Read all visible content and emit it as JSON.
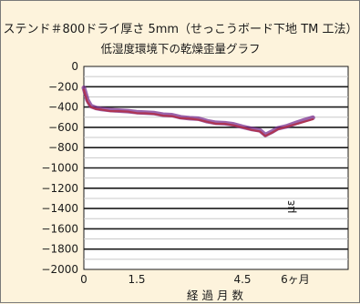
{
  "chart_data": {
    "type": "line",
    "title": "ステンド＃800ドライ厚さ 5mm（せっこうボード下地 TM 工法）",
    "subtitle": "低湿度環境下の乾燥歪量グラフ",
    "xlabel": "経 過 月 数",
    "ylabel": "με",
    "xlim": [
      0,
      7.5
    ],
    "ylim": [
      -2000,
      0
    ],
    "x_ticks": [
      {
        "value": 0,
        "label": "0"
      },
      {
        "value": 1.5,
        "label": "1.5"
      },
      {
        "value": 4.5,
        "label": "4.5"
      },
      {
        "value": 6,
        "label": "6ヶ月"
      }
    ],
    "y_ticks": [
      {
        "value": 0,
        "label": "0"
      },
      {
        "value": -200,
        "label": "−200"
      },
      {
        "value": -400,
        "label": "−400"
      },
      {
        "value": -600,
        "label": "−600"
      },
      {
        "value": -800,
        "label": "−800"
      },
      {
        "value": -1000,
        "label": "−1000"
      },
      {
        "value": -1200,
        "label": "−1200"
      },
      {
        "value": -1400,
        "label": "−1400"
      },
      {
        "value": -1600,
        "label": "−1600"
      },
      {
        "value": -1800,
        "label": "−1800"
      },
      {
        "value": -2000,
        "label": "−2000"
      }
    ],
    "grid": true,
    "series": [
      {
        "color": "#7a2f8f",
        "x": [
          0,
          0.1,
          0.2,
          0.35,
          0.5,
          0.75,
          1.0,
          1.25,
          1.5,
          1.75,
          2.0,
          2.25,
          2.5,
          2.75,
          3.0,
          3.25,
          3.5,
          3.75,
          4.0,
          4.25,
          4.5,
          4.75,
          5.0,
          5.15,
          5.35,
          5.5,
          5.75,
          6.0,
          6.25,
          6.5
        ],
        "y": [
          -210,
          -330,
          -390,
          -410,
          -420,
          -430,
          -435,
          -440,
          -450,
          -455,
          -460,
          -475,
          -480,
          -500,
          -510,
          -515,
          -540,
          -555,
          -560,
          -570,
          -595,
          -615,
          -630,
          -675,
          -640,
          -610,
          -590,
          -560,
          -530,
          -505
        ]
      },
      {
        "color": "#b0304a",
        "x": [
          0,
          0.1,
          0.2,
          0.35,
          0.5,
          0.75,
          1.0,
          1.25,
          1.5,
          1.75,
          2.0,
          2.25,
          2.5,
          2.75,
          3.0,
          3.25,
          3.5,
          3.75,
          4.0,
          4.25,
          4.5,
          4.75,
          5.0,
          5.15,
          5.35,
          5.5,
          5.75,
          6.0,
          6.25,
          6.5
        ],
        "y": [
          -230,
          -350,
          -400,
          -420,
          -425,
          -440,
          -440,
          -445,
          -460,
          -462,
          -468,
          -485,
          -490,
          -510,
          -515,
          -525,
          -545,
          -565,
          -565,
          -580,
          -600,
          -625,
          -640,
          -685,
          -650,
          -620,
          -595,
          -570,
          -545,
          -520
        ]
      }
    ],
    "colors": {
      "background": "#fdf3dc",
      "plot_background": "#ffffff",
      "major_grid": "#1a1a1a",
      "minor_grid": "#c8c8c8"
    }
  }
}
